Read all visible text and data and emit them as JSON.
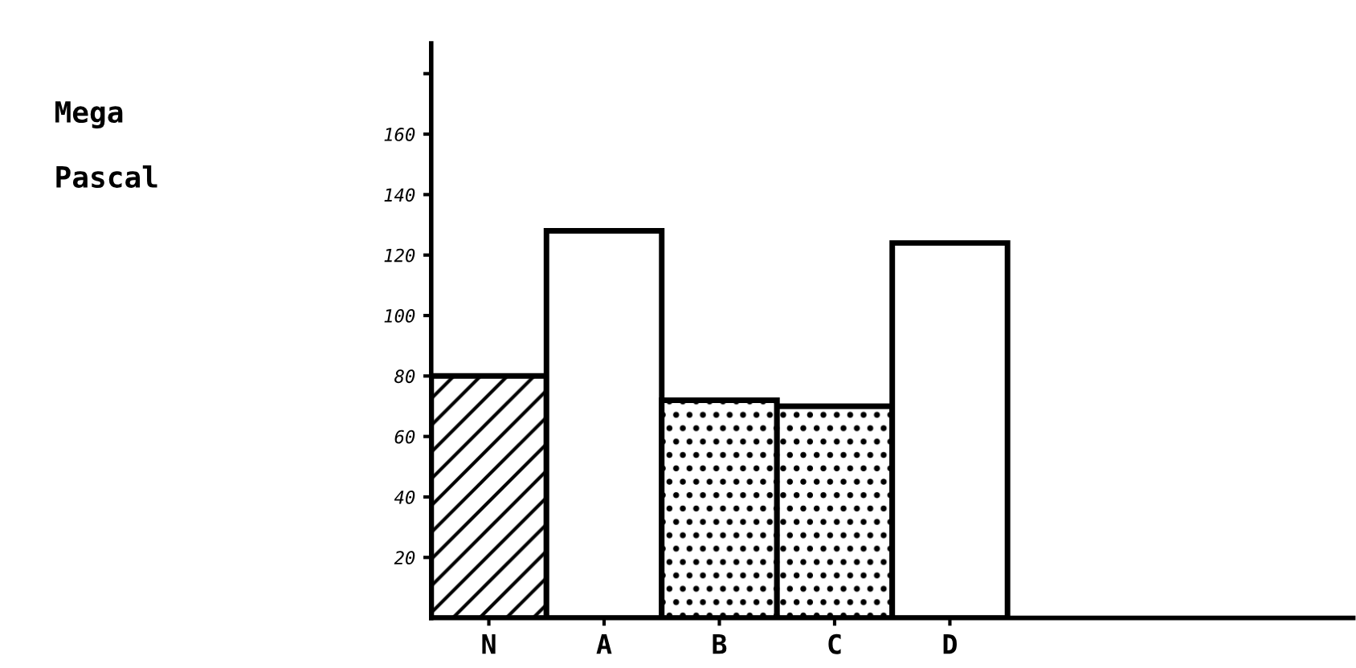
{
  "chart_data": {
    "type": "bar",
    "ylabel": "Mega\n\nPascal",
    "categories": [
      "N",
      "A",
      "B",
      "C",
      "D"
    ],
    "values": [
      80,
      128,
      72,
      70,
      124
    ],
    "colors": [
      "#000000",
      "#ffffff",
      "#000000",
      "#000000",
      "#ffffff"
    ],
    "ylim": [
      0,
      190
    ],
    "yticks": [
      20,
      40,
      60,
      80,
      100,
      120,
      140,
      160,
      {
        "value": 180,
        "label": null
      }
    ],
    "grid": false
  }
}
